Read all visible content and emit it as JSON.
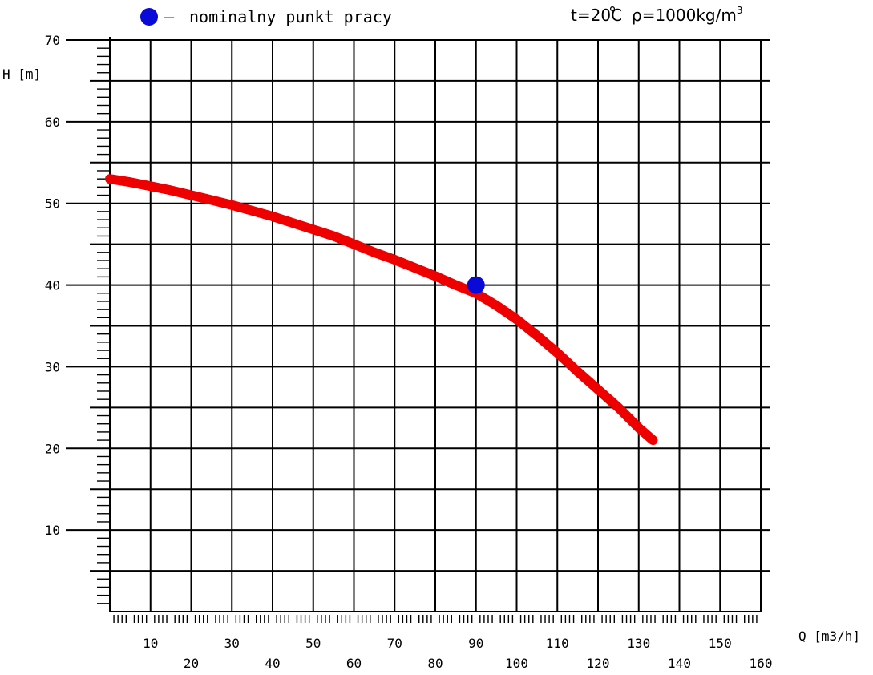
{
  "chart_data": {
    "type": "line",
    "xlabel": "Q [m3/h]",
    "ylabel": "H [m]",
    "xlim": [
      0,
      160
    ],
    "ylim": [
      0,
      70
    ],
    "x_major_ticks": [
      0,
      10,
      20,
      30,
      40,
      50,
      60,
      70,
      80,
      90,
      100,
      110,
      120,
      130,
      140,
      150,
      160
    ],
    "x_tick_labels_top_row": [
      "10",
      "30",
      "50",
      "70",
      "90",
      "110",
      "130",
      "150"
    ],
    "x_tick_labels_bottom_row": [
      "20",
      "40",
      "60",
      "80",
      "100",
      "120",
      "140",
      "160"
    ],
    "y_tick_labels": [
      "10",
      "20",
      "30",
      "40",
      "50",
      "60",
      "70"
    ],
    "grid": true,
    "series": [
      {
        "color": "#ee0000",
        "x": [
          0,
          5,
          10,
          15,
          20,
          25,
          30,
          35,
          40,
          45,
          50,
          55,
          60,
          65,
          70,
          75,
          80,
          85,
          90,
          95,
          100,
          105,
          110,
          115,
          120,
          125,
          130,
          133.5
        ],
        "y": [
          53.0,
          52.6,
          52.1,
          51.6,
          51.0,
          50.4,
          49.8,
          49.1,
          48.4,
          47.6,
          46.8,
          46.0,
          45.0,
          44.0,
          43.1,
          42.1,
          41.1,
          40.0,
          39.0,
          37.5,
          35.8,
          33.8,
          31.7,
          29.4,
          27.2,
          25.0,
          22.5,
          21.0
        ]
      }
    ],
    "annotations": [
      {
        "label": "nominalny punkt pracy",
        "x": 90,
        "y": 40,
        "color": "#0a0ad8"
      }
    ]
  },
  "legend": {
    "marker_color": "#0a0ad8",
    "dash": "–",
    "text": "nominalny punkt pracy"
  },
  "conditions": {
    "temperature_prefix": "t=20",
    "temperature_unit": "C",
    "density_text": "ρ=1000kg/m",
    "density_exponent": "3"
  }
}
